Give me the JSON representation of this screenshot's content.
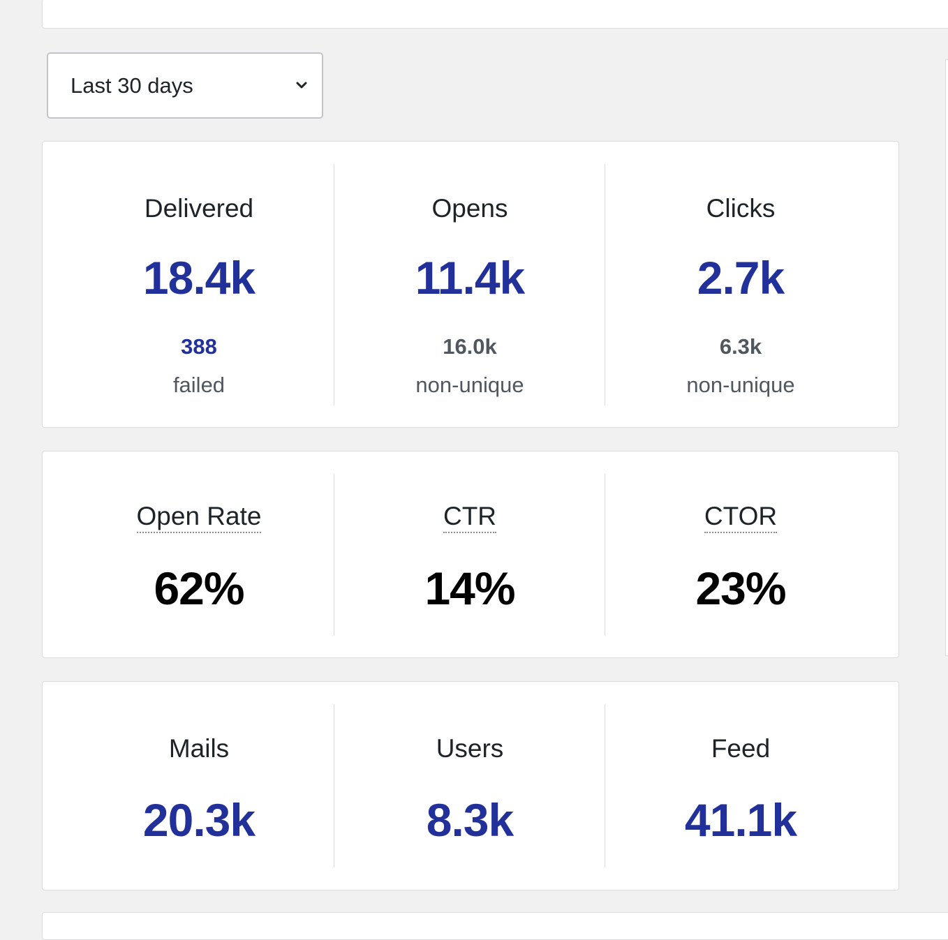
{
  "range_select": {
    "selected": "Last 30 days"
  },
  "delivery_stats": [
    {
      "label": "Delivered",
      "value": "18.4k",
      "sub_value": "388",
      "sub_label": "failed"
    },
    {
      "label": "Opens",
      "value": "11.4k",
      "sub_value": "16.0k",
      "sub_label": "non-unique"
    },
    {
      "label": "Clicks",
      "value": "2.7k",
      "sub_value": "6.3k",
      "sub_label": "non-unique"
    }
  ],
  "rate_stats": [
    {
      "label": "Open Rate",
      "value": "62%"
    },
    {
      "label": "CTR",
      "value": "14%"
    },
    {
      "label": "CTOR",
      "value": "23%"
    }
  ],
  "count_stats": [
    {
      "label": "Mails",
      "value": "20.3k"
    },
    {
      "label": "Users",
      "value": "8.3k"
    },
    {
      "label": "Feed",
      "value": "41.1k"
    }
  ],
  "colors": {
    "accent": "#22309a",
    "background": "#f1f1f1",
    "card": "#ffffff",
    "border": "#dcdcde",
    "muted_text": "#50575e"
  },
  "icons": {
    "select_toggle": "chevron-down-icon"
  }
}
